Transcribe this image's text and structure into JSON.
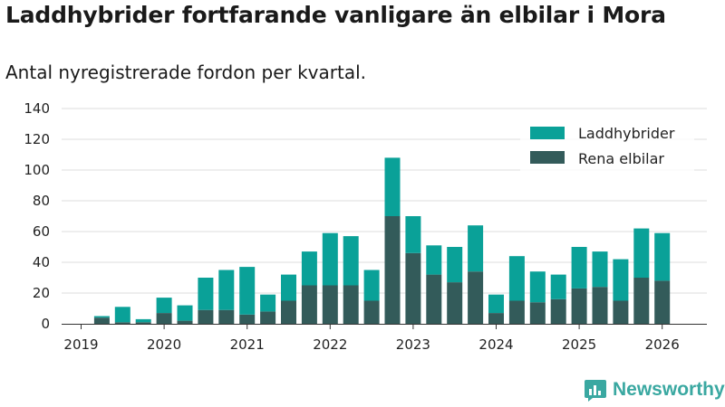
{
  "title": "Laddhybrider fortfarande vanligare än elbilar i Mora",
  "subtitle": "Antal nyregistrerade fordon per kvartal.",
  "brand": {
    "name": "Newsworthy",
    "icon": "newsworthy-logo-icon"
  },
  "colors": {
    "laddhybrider": "#0aa198",
    "rena_elbilar": "#335b5a",
    "grid": "#dddddd",
    "axis": "#333333"
  },
  "chart_data": {
    "type": "bar",
    "stacked": true,
    "title": "Laddhybrider fortfarande vanligare än elbilar i Mora",
    "subtitle": "Antal nyregistrerade fordon per kvartal.",
    "xlabel": "",
    "ylabel": "",
    "ylim": [
      0,
      140
    ],
    "yticks": [
      "0",
      "20",
      "40",
      "60",
      "80",
      "100",
      "120",
      "140"
    ],
    "grid": true,
    "legend_position": "top-right",
    "x_tick_labels": [
      "2019",
      "2020",
      "2021",
      "2022",
      "2023",
      "2024",
      "2025",
      "2026"
    ],
    "categories": [
      "2019 Q2",
      "2019 Q3",
      "2019 Q4",
      "2020 Q1",
      "2020 Q2",
      "2020 Q3",
      "2020 Q4",
      "2021 Q1",
      "2021 Q2",
      "2021 Q3",
      "2021 Q4",
      "2022 Q1",
      "2022 Q2",
      "2022 Q3",
      "2022 Q4",
      "2023 Q1",
      "2023 Q2",
      "2023 Q3",
      "2023 Q4",
      "2024 Q1",
      "2024 Q2",
      "2024 Q3",
      "2024 Q4",
      "2025 Q1",
      "2025 Q2",
      "2025 Q3",
      "2025 Q4",
      "2026 Q1"
    ],
    "series": [
      {
        "name": "Rena elbilar",
        "values": [
          4,
          1,
          1,
          7,
          2,
          9,
          9,
          6,
          8,
          15,
          25,
          25,
          25,
          15,
          70,
          46,
          32,
          27,
          34,
          7,
          15,
          14,
          16,
          23,
          24,
          15,
          30,
          28
        ]
      },
      {
        "name": "Laddhybrider",
        "values": [
          1,
          10,
          2,
          10,
          10,
          21,
          26,
          31,
          11,
          17,
          22,
          34,
          32,
          20,
          38,
          24,
          19,
          23,
          30,
          12,
          29,
          20,
          16,
          27,
          23,
          27,
          32,
          31
        ]
      }
    ]
  }
}
